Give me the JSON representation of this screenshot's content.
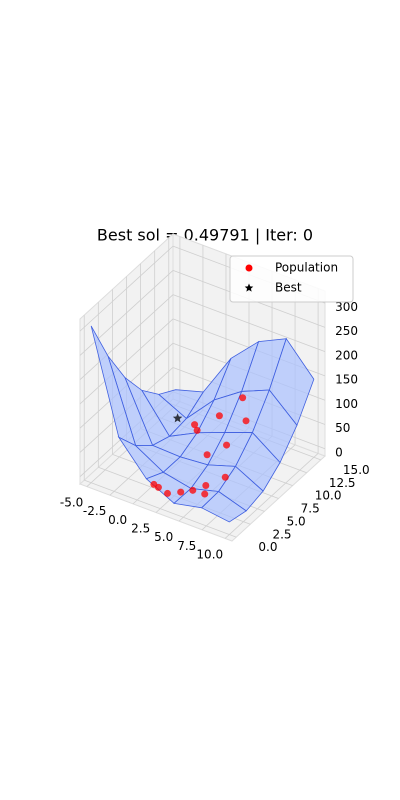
{
  "chart_data": {
    "type": "surface3d",
    "title": "Best sol = 0.49791 | Iter: 0",
    "xlim": [
      -5.75,
      10.75
    ],
    "ylim": [
      -0.75,
      15.75
    ],
    "zlim": [
      -15,
      325
    ],
    "xticks": [
      {
        "value": -5,
        "label": "-5.0"
      },
      {
        "value": -2.5,
        "label": "-2.5"
      },
      {
        "value": 0,
        "label": "0.0"
      },
      {
        "value": 2.5,
        "label": "2.5"
      },
      {
        "value": 5,
        "label": "5.0"
      },
      {
        "value": 7.5,
        "label": "7.5"
      },
      {
        "value": 10,
        "label": "10.0"
      }
    ],
    "yticks": [
      {
        "value": 0,
        "label": "0.0"
      },
      {
        "value": 2.5,
        "label": "2.5"
      },
      {
        "value": 5,
        "label": "5.0"
      },
      {
        "value": 7.5,
        "label": "7.5"
      },
      {
        "value": 10,
        "label": "10.0"
      },
      {
        "value": 12.5,
        "label": "12.5"
      },
      {
        "value": 15,
        "label": "15.0"
      }
    ],
    "zticks": [
      0,
      50,
      100,
      150,
      200,
      250,
      300
    ],
    "grid": true,
    "surface": {
      "color": "#4060e0",
      "fill": "#aac0ff",
      "x": [
        -5,
        -2,
        1,
        4,
        7,
        10
      ],
      "y": [
        0,
        3,
        6,
        9,
        12,
        15
      ],
      "z": [
        [
          308.1,
          214.0,
          137.9,
          79.8,
          39.6,
          17.5
        ],
        [
          100.1,
          50.9,
          19.7,
          6.5,
          11.3,
          34.1
        ],
        [
          35.8,
          17.5,
          17.3,
          35.1,
          70.9,
          124.6
        ],
        [
          6.6,
          5.4,
          22.2,
          57.0,
          109.8,
          180.6
        ],
        [
          18.7,
          20.5,
          40.4,
          78.3,
          134.1,
          208.0
        ],
        [
          11.0,
          1.9,
          10.9,
          37.9,
          82.9,
          145.8
        ]
      ]
    },
    "series": [
      {
        "name": "Population",
        "color": "#ff0000",
        "marker": "circle",
        "x": [
          1.2,
          2.0,
          2.8,
          3.5,
          4.2,
          5.0,
          5.8,
          6.5,
          3.0,
          4.5,
          1.0,
          6.0,
          2.5,
          -0.5,
          3.8
        ],
        "y": [
          1.0,
          0.5,
          0.8,
          2.0,
          3.0,
          4.0,
          2.5,
          5.0,
          7.5,
          8.5,
          9.0,
          9.5,
          10.5,
          11.0,
          12.5
        ],
        "z": [
          15,
          20,
          10,
          5,
          3,
          8,
          12,
          25,
          20,
          40,
          40,
          90,
          65,
          20,
          90
        ]
      },
      {
        "name": "Best",
        "color": "#000000",
        "marker": "star",
        "x": [
          -3.14
        ],
        "y": [
          12.3
        ],
        "z": [
          0.49791
        ]
      }
    ],
    "legend": "upper right"
  }
}
